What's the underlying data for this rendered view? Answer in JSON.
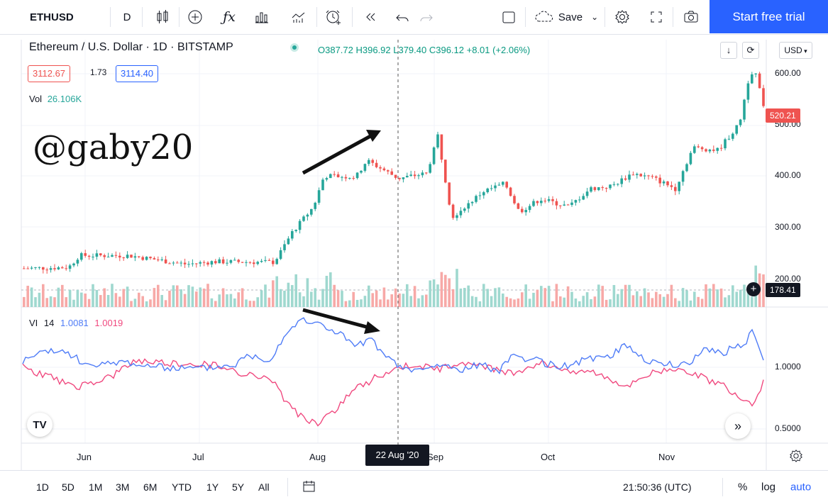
{
  "toolbar": {
    "symbol": "ETHUSD",
    "interval": "D",
    "save_label": "Save",
    "cta_label": "Start free trial"
  },
  "legend": {
    "title": "Ethereum / U.S. Dollar · 1D · BITSTAMP",
    "ohlc": "O387.72 H396.92 L379.40 C396.12 +8.01 (+2.06%)",
    "bid": "3112.67",
    "spread": "1.73",
    "ask": "3114.40",
    "vol_label": "Vol",
    "vol_value": "26.106K",
    "vi_label": "VI",
    "vi_period": "14",
    "vi_plus": "1.0081",
    "vi_minus": "1.0019",
    "currency": "USD"
  },
  "watermark": "@gaby20",
  "price_scale": {
    "ticks": [
      "600.00",
      "400.00",
      "300.00",
      "200.00"
    ],
    "last_price": "520.21",
    "cursor_price": "178.41"
  },
  "vi_scale": {
    "ticks": [
      "1.0000",
      "0.5000"
    ]
  },
  "time_axis": {
    "months": [
      "Jun",
      "Jul",
      "Aug",
      "Sep",
      "Oct",
      "Nov"
    ],
    "cursor_date": "22 Aug '20"
  },
  "bottom": {
    "timeframes": [
      "1D",
      "5D",
      "1M",
      "3M",
      "6M",
      "YTD",
      "1Y",
      "5Y",
      "All"
    ],
    "clock": "21:50:36 (UTC)",
    "percent": "%",
    "log": "log",
    "auto": "auto"
  },
  "colors": {
    "up": "#26a69a",
    "down": "#ef5350",
    "vi_plus": "#4f7cf7",
    "vi_minus": "#f0497f",
    "accent": "#2962ff"
  }
}
